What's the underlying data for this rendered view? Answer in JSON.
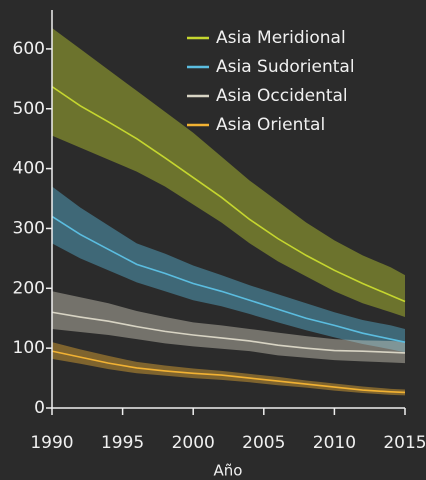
{
  "chart_data": {
    "type": "line",
    "xlabel": "Año",
    "x": [
      1990,
      1992,
      1994,
      1996,
      1998,
      2000,
      2002,
      2004,
      2006,
      2008,
      2010,
      2012,
      2014,
      2015
    ],
    "series": [
      {
        "name": "Asia Meridional",
        "color": "#c5d62f",
        "values": [
          537,
          505,
          478,
          450,
          418,
          385,
          352,
          315,
          283,
          255,
          230,
          208,
          188,
          178
        ],
        "upper": [
          635,
          600,
          565,
          530,
          495,
          460,
          420,
          380,
          345,
          310,
          280,
          255,
          235,
          222
        ],
        "lower": [
          455,
          435,
          415,
          395,
          370,
          340,
          310,
          275,
          245,
          220,
          195,
          175,
          160,
          152
        ]
      },
      {
        "name": "Asia Sudoriental",
        "color": "#5bbde0",
        "values": [
          320,
          290,
          265,
          240,
          225,
          208,
          195,
          180,
          165,
          150,
          138,
          125,
          115,
          110
        ],
        "upper": [
          370,
          335,
          305,
          275,
          258,
          238,
          222,
          205,
          190,
          175,
          160,
          147,
          138,
          132
        ],
        "lower": [
          275,
          250,
          230,
          210,
          195,
          180,
          170,
          157,
          143,
          130,
          118,
          107,
          98,
          93
        ]
      },
      {
        "name": "Asia Occidental",
        "color": "#d8d4c4",
        "values": [
          160,
          152,
          145,
          136,
          128,
          122,
          117,
          112,
          105,
          100,
          96,
          95,
          93,
          92
        ],
        "upper": [
          195,
          185,
          175,
          162,
          152,
          143,
          138,
          132,
          126,
          120,
          115,
          113,
          112,
          111
        ],
        "lower": [
          132,
          127,
          122,
          115,
          108,
          103,
          99,
          95,
          88,
          84,
          80,
          78,
          76,
          75
        ]
      },
      {
        "name": "Asia Oriental",
        "color": "#f2b233",
        "values": [
          95,
          85,
          75,
          67,
          62,
          58,
          55,
          50,
          45,
          40,
          35,
          30,
          27,
          26
        ],
        "upper": [
          110,
          98,
          87,
          77,
          71,
          66,
          62,
          57,
          52,
          46,
          41,
          36,
          32,
          31
        ],
        "lower": [
          82,
          74,
          65,
          58,
          54,
          50,
          47,
          43,
          38,
          34,
          29,
          25,
          22,
          21
        ]
      }
    ],
    "xlim": [
      1990,
      2015
    ],
    "xticks": [
      1990,
      1995,
      2000,
      2005,
      2010,
      2015
    ],
    "ylim": [
      0,
      665
    ],
    "yticks": [
      0,
      100,
      200,
      300,
      400,
      500,
      600
    ],
    "legend": "upper right"
  }
}
